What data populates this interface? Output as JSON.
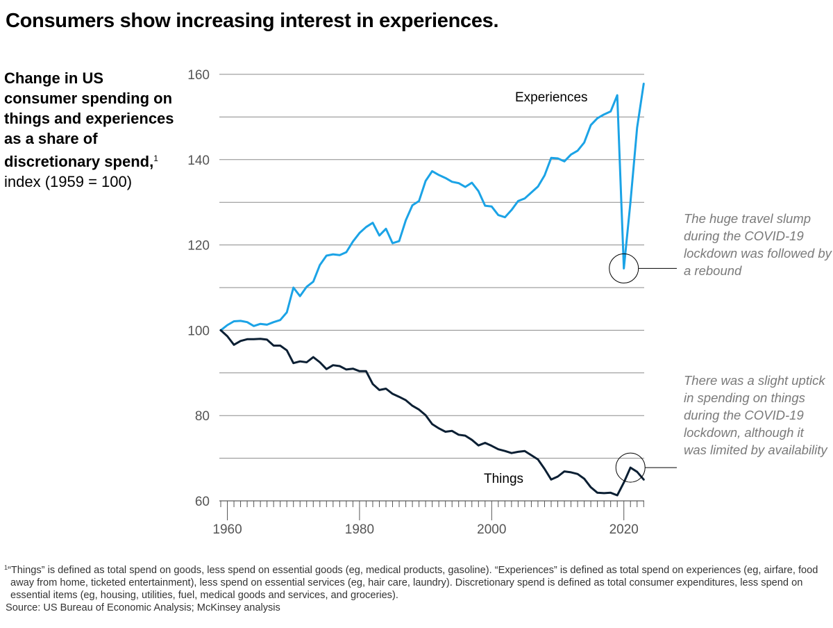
{
  "title": "Consumers show increasing interest in experiences.",
  "subtitle": {
    "bold": "Change in US consumer spending on things and experiences as a share of discretionary spend,",
    "footnote_ref": "1",
    "normal": "index (1959 = 100)"
  },
  "annotations": {
    "experiences": "The huge travel slump during the COVID-19 lockdown was followed by a rebound",
    "things": "There was a slight uptick in spending on things during the COVID-19 lockdown, although it was limited by availability"
  },
  "footnote": {
    "marker": "1",
    "text": "“Things” is defined as total spend on goods, less spend on essential goods (eg, medical products, gasoline). “Experiences” is defined as total spend on experiences (eg, airfare, food away from home, ticketed entertainment), less spend on essential services (eg, hair care, laundry). Discretionary spend is defined as total consumer expenditures, less spend on essential items (eg, housing, utilities, fuel, medical goods and services, and groceries).",
    "source": "Source: US Bureau of Economic Analysis; McKinsey analysis"
  },
  "colors": {
    "experiences": "#1ba3e6",
    "things": "#0b1f33",
    "grid": "#555555",
    "annotation": "#7a7a7a"
  },
  "chart_data": {
    "type": "line",
    "title": "Change in US consumer spending on things and experiences as a share of discretionary spend, index (1959 = 100)",
    "xlabel": "",
    "ylabel": "",
    "xlim": [
      1959,
      2023
    ],
    "ylim": [
      60,
      160
    ],
    "yticks": [
      60,
      80,
      100,
      120,
      140,
      160
    ],
    "ygrid": [
      70,
      90,
      110,
      130,
      150
    ],
    "xticks": [
      1960,
      1980,
      2000,
      2020
    ],
    "grid": true,
    "legend": "inline-labels",
    "x": [
      1959,
      1960,
      1961,
      1962,
      1963,
      1964,
      1965,
      1966,
      1967,
      1968,
      1969,
      1970,
      1971,
      1972,
      1973,
      1974,
      1975,
      1976,
      1977,
      1978,
      1979,
      1980,
      1981,
      1982,
      1983,
      1984,
      1985,
      1986,
      1987,
      1988,
      1989,
      1990,
      1991,
      1992,
      1993,
      1994,
      1995,
      1996,
      1997,
      1998,
      1999,
      2000,
      2001,
      2002,
      2003,
      2004,
      2005,
      2006,
      2007,
      2008,
      2009,
      2010,
      2011,
      2012,
      2013,
      2014,
      2015,
      2016,
      2017,
      2018,
      2019,
      2020,
      2021,
      2022,
      2023
    ],
    "series": [
      {
        "name": "Experiences",
        "values": [
          100,
          101.2,
          102.1,
          102.2,
          101.9,
          101.0,
          101.5,
          101.3,
          101.9,
          102.4,
          104.2,
          110.0,
          108.0,
          110.2,
          111.4,
          115.3,
          117.5,
          117.8,
          117.6,
          118.3,
          120.8,
          122.8,
          124.2,
          125.2,
          122.2,
          123.8,
          120.4,
          120.9,
          125.8,
          129.3,
          130.3,
          135.0,
          137.3,
          136.4,
          135.7,
          134.8,
          134.5,
          133.6,
          134.6,
          132.6,
          129.2,
          129.0,
          127.0,
          126.5,
          128.2,
          130.3,
          130.9,
          132.3,
          133.7,
          136.3,
          140.4,
          140.3,
          139.6,
          141.2,
          142.1,
          144.0,
          148.1,
          149.7,
          150.6,
          151.3,
          155.1,
          114.5,
          130.0,
          147.5,
          157.8
        ]
      },
      {
        "name": "Things",
        "values": [
          100,
          98.6,
          96.6,
          97.5,
          97.9,
          97.9,
          98.0,
          97.8,
          96.4,
          96.4,
          95.3,
          92.3,
          92.7,
          92.5,
          93.7,
          92.5,
          90.9,
          91.8,
          91.6,
          90.8,
          91.0,
          90.4,
          90.4,
          87.4,
          86.0,
          86.3,
          85.1,
          84.4,
          83.6,
          82.3,
          81.4,
          80.1,
          78.0,
          77.0,
          76.2,
          76.4,
          75.5,
          75.3,
          74.3,
          73.0,
          73.6,
          72.9,
          72.1,
          71.7,
          71.2,
          71.5,
          71.7,
          70.7,
          69.7,
          67.5,
          65.0,
          65.7,
          66.9,
          66.7,
          66.3,
          65.2,
          63.2,
          61.9,
          61.8,
          61.9,
          61.3,
          64.3,
          67.8,
          66.8,
          65.0
        ]
      }
    ],
    "series_labels": [
      "Experiences",
      "Things"
    ],
    "annotations": [
      {
        "x": 2020,
        "series": "Experiences",
        "text": "The huge travel slump during the COVID-19 lockdown was followed by a rebound"
      },
      {
        "x": 2021,
        "series": "Things",
        "text": "There was a slight uptick in spending on things during the COVID-19 lockdown, although it was limited by availability"
      }
    ]
  }
}
